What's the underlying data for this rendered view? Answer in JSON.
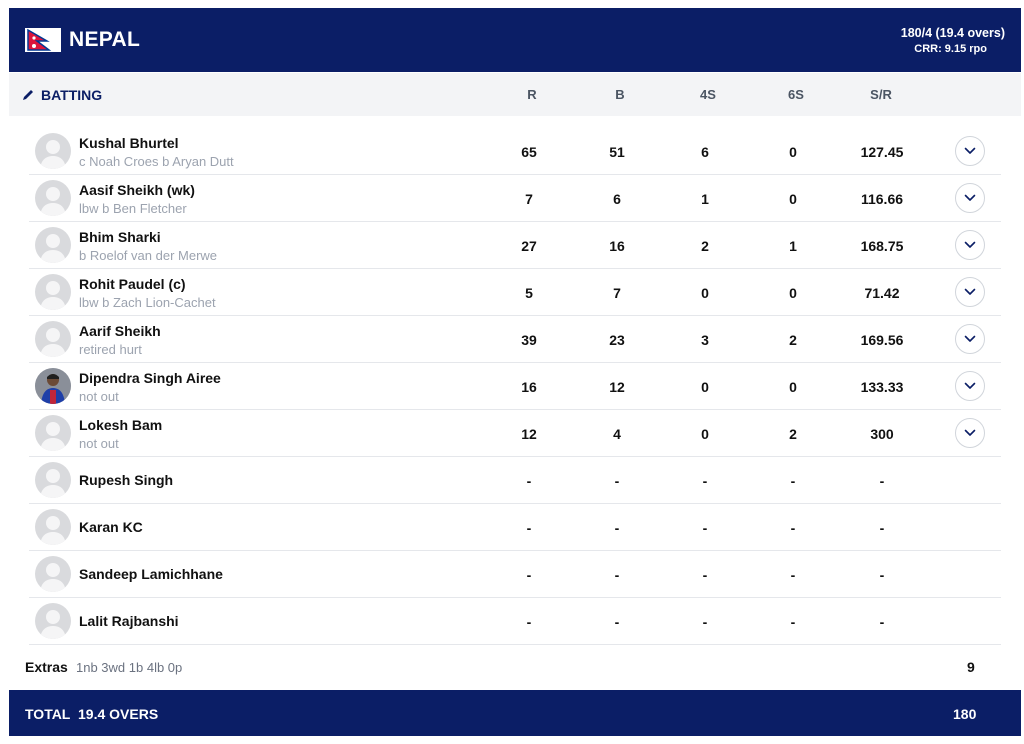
{
  "header": {
    "team": "NEPAL",
    "score": "180/4 (19.4 overs)",
    "crr": "CRR: 9.15 rpo",
    "flag_icon": "nepal-flag-icon"
  },
  "columns": {
    "section_label": "BATTING",
    "r": "R",
    "b": "B",
    "fours": "4S",
    "sixes": "6S",
    "sr": "S/R"
  },
  "batters": [
    {
      "name": "Kushal Bhurtel",
      "dismissal": "c Noah Croes b Aryan Dutt",
      "r": "65",
      "b": "51",
      "fours": "6",
      "sixes": "0",
      "sr": "127.45",
      "photo": false
    },
    {
      "name": "Aasif Sheikh (wk)",
      "dismissal": "lbw b Ben Fletcher",
      "r": "7",
      "b": "6",
      "fours": "1",
      "sixes": "0",
      "sr": "116.66",
      "photo": false
    },
    {
      "name": "Bhim Sharki",
      "dismissal": "b Roelof van der Merwe",
      "r": "27",
      "b": "16",
      "fours": "2",
      "sixes": "1",
      "sr": "168.75",
      "photo": false
    },
    {
      "name": "Rohit Paudel (c)",
      "dismissal": "lbw b Zach Lion-Cachet",
      "r": "5",
      "b": "7",
      "fours": "0",
      "sixes": "0",
      "sr": "71.42",
      "photo": false
    },
    {
      "name": "Aarif Sheikh",
      "dismissal": "retired hurt",
      "r": "39",
      "b": "23",
      "fours": "3",
      "sixes": "2",
      "sr": "169.56",
      "photo": false
    },
    {
      "name": "Dipendra Singh Airee",
      "dismissal": "not out",
      "r": "16",
      "b": "12",
      "fours": "0",
      "sixes": "0",
      "sr": "133.33",
      "photo": true
    },
    {
      "name": "Lokesh Bam",
      "dismissal": "not out",
      "r": "12",
      "b": "4",
      "fours": "0",
      "sixes": "2",
      "sr": "300",
      "photo": false
    },
    {
      "name": "Rupesh Singh",
      "dismissal": "",
      "r": "-",
      "b": "-",
      "fours": "-",
      "sixes": "-",
      "sr": "-",
      "photo": false
    },
    {
      "name": "Karan KC",
      "dismissal": "",
      "r": "-",
      "b": "-",
      "fours": "-",
      "sixes": "-",
      "sr": "-",
      "photo": false
    },
    {
      "name": "Sandeep Lamichhane",
      "dismissal": "",
      "r": "-",
      "b": "-",
      "fours": "-",
      "sixes": "-",
      "sr": "-",
      "photo": false
    },
    {
      "name": "Lalit Rajbanshi",
      "dismissal": "",
      "r": "-",
      "b": "-",
      "fours": "-",
      "sixes": "-",
      "sr": "-",
      "photo": false
    }
  ],
  "extras": {
    "label": "Extras",
    "detail": "1nb 3wd 1b 4lb 0p",
    "total": "9"
  },
  "total": {
    "label": "TOTAL",
    "overs": "19.4 OVERS",
    "runs": "180"
  },
  "colors": {
    "navy": "#0b1e66",
    "flag_red": "#dc143c",
    "flag_blue": "#003893"
  }
}
